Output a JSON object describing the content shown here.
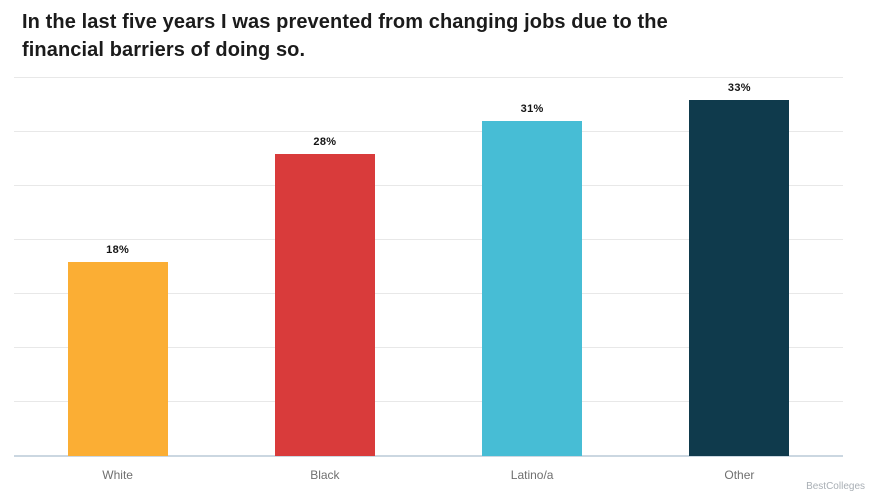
{
  "title": "In the last five years I was prevented from changing jobs due to the financial barriers of doing so.",
  "watermark": "BestColleges",
  "chart_data": {
    "type": "bar",
    "title": "In the last five years I was prevented from changing jobs due to the financial barriers of doing so.",
    "categories": [
      "White",
      "Black",
      "Latino/a",
      "Other"
    ],
    "values": [
      18,
      28,
      31,
      33
    ],
    "value_labels": [
      "18%",
      "28%",
      "31%",
      "33%"
    ],
    "bar_colors": [
      "#FBAE34",
      "#D93B3B",
      "#47BDD5",
      "#0F3A4C"
    ],
    "xlabel": "",
    "ylabel": "",
    "ylim": [
      0,
      35
    ],
    "gridline_interval": 5,
    "grid": "on",
    "legend": "none",
    "attribution": "BestColleges"
  }
}
